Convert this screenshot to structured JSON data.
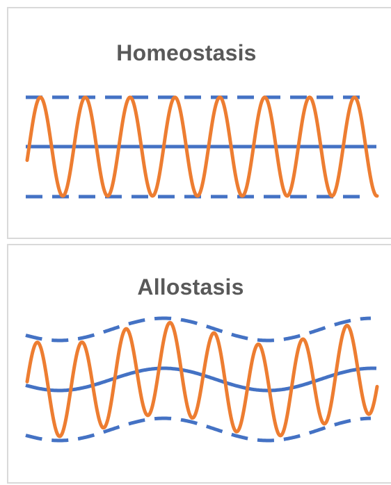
{
  "panels": [
    {
      "title": "Homeostasis",
      "setpoint_color": "#4472C4",
      "signal_color": "#ED7D31",
      "setpoint": "constant",
      "bounds": "constant",
      "oscillation_cycles": 8
    },
    {
      "title": "Allostasis",
      "setpoint_color": "#4472C4",
      "signal_color": "#ED7D31",
      "setpoint": "varying",
      "bounds": "varying",
      "oscillation_cycles": 8
    }
  ]
}
